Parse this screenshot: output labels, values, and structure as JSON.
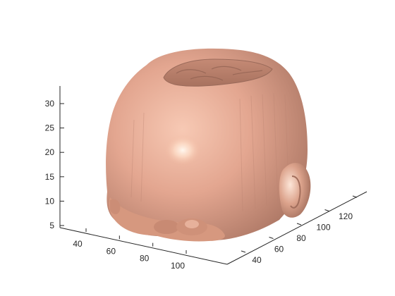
{
  "chart_data": {
    "type": "surface3d",
    "description_colors": {
      "background": "#ffffff",
      "axis": "#262626",
      "surface": "#e0a48c",
      "surface_shadow": "#9a6a5a",
      "highlight": "#fff4ea"
    },
    "grid": false,
    "box": false,
    "axes": {
      "x": {
        "ticks": [
          40,
          60,
          80,
          100
        ],
        "tick_labels": [
          "40",
          "60",
          "80",
          "100"
        ]
      },
      "y": {
        "ticks": [
          40,
          60,
          80,
          100,
          120
        ],
        "tick_labels": [
          "40",
          "60",
          "80",
          "100",
          "120"
        ]
      },
      "z": {
        "ticks": [
          5,
          10,
          15,
          20,
          25,
          30
        ],
        "tick_labels": [
          "5",
          "10",
          "15",
          "20",
          "25",
          "30"
        ]
      }
    }
  }
}
